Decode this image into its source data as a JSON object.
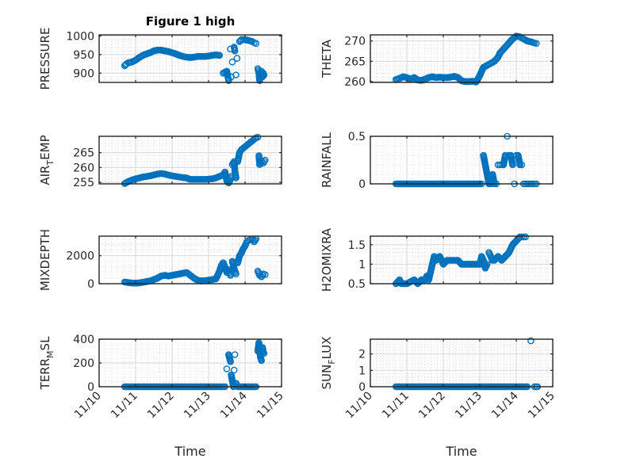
{
  "figure": {
    "title": "Figure 1 high",
    "marker_color": "#0072BD",
    "axis_color": "#262626"
  },
  "chart_data": [
    {
      "type": "scatter",
      "position": "row1-left",
      "title": "Figure 1 high",
      "ylabel": "PRESSURE",
      "xlabel": "",
      "xlim": [
        0,
        5
      ],
      "ylim": [
        875,
        1003
      ],
      "yticks": [
        900,
        950,
        1000
      ],
      "yticklabels": [
        "900",
        "950",
        "1000"
      ],
      "grid": true,
      "minor_grid": true,
      "x": [
        0.7,
        0.75,
        0.8,
        0.9,
        1.0,
        1.1,
        1.2,
        1.3,
        1.4,
        1.5,
        1.6,
        1.7,
        1.8,
        1.9,
        2.0,
        2.1,
        2.2,
        2.3,
        2.4,
        2.5,
        2.6,
        2.7,
        2.8,
        2.9,
        3.0,
        3.1,
        3.2,
        3.3,
        3.4,
        3.5,
        3.55,
        3.6,
        3.62,
        3.65,
        3.7,
        3.72,
        3.75,
        3.78,
        3.85,
        3.9,
        3.95,
        4.0,
        4.1,
        4.2,
        4.25,
        4.3,
        4.35,
        4.38,
        4.4,
        4.42,
        4.45,
        4.48,
        4.5,
        4.52
      ],
      "y": [
        920,
        925,
        928,
        930,
        935,
        942,
        948,
        952,
        955,
        960,
        962,
        962,
        960,
        958,
        955,
        952,
        948,
        945,
        943,
        942,
        943,
        945,
        945,
        945,
        946,
        948,
        949,
        948,
        900,
        905,
        880,
        965,
        890,
        930,
        970,
        960,
        895,
        940,
        985,
        990,
        990,
        990,
        988,
        985,
        982,
        980,
        912,
        900,
        880,
        895,
        905,
        890,
        900,
        895
      ]
    },
    {
      "type": "scatter",
      "position": "row1-right",
      "ylabel": "THETA",
      "xlabel": "",
      "xlim": [
        0,
        5
      ],
      "ylim": [
        259.8,
        271.5
      ],
      "yticks": [
        260,
        265,
        270
      ],
      "yticklabels": [
        "260",
        "265",
        "270"
      ],
      "grid": true,
      "minor_grid": true,
      "x": [
        0.7,
        0.8,
        0.9,
        1.0,
        1.1,
        1.2,
        1.3,
        1.4,
        1.5,
        1.6,
        1.7,
        1.8,
        1.9,
        2.0,
        2.1,
        2.2,
        2.3,
        2.4,
        2.5,
        2.6,
        2.7,
        2.8,
        2.9,
        3.0,
        3.1,
        3.2,
        3.3,
        3.4,
        3.45,
        3.5,
        3.55,
        3.6,
        3.7,
        3.8,
        3.9,
        4.0,
        4.1,
        4.2,
        4.3,
        4.4,
        4.5,
        4.55
      ],
      "y": [
        260.5,
        260.8,
        261.2,
        261.0,
        260.6,
        261.0,
        260.4,
        260.3,
        260.6,
        261.0,
        261.2,
        261.0,
        261.1,
        261.0,
        261.0,
        261.1,
        261.3,
        261.0,
        260.2,
        260.0,
        260.0,
        260.1,
        259.9,
        261.5,
        263.5,
        264.0,
        264.5,
        265.0,
        265.5,
        266.0,
        267.0,
        267.5,
        268.5,
        269.5,
        270.5,
        271.2,
        271.0,
        270.5,
        270.0,
        269.8,
        269.5,
        269.4
      ]
    },
    {
      "type": "scatter",
      "position": "row2-left",
      "ylabel": "AIR_TEMP",
      "xlabel": "",
      "xlim": [
        0,
        5
      ],
      "ylim": [
        254.5,
        270.5
      ],
      "yticks": [
        255,
        260,
        265
      ],
      "yticklabels": [
        "255",
        "260",
        "265"
      ],
      "grid": true,
      "minor_grid": true,
      "x": [
        0.7,
        0.8,
        0.9,
        1.0,
        1.1,
        1.2,
        1.3,
        1.4,
        1.5,
        1.6,
        1.7,
        1.8,
        1.9,
        2.0,
        2.1,
        2.2,
        2.3,
        2.4,
        2.5,
        2.6,
        2.7,
        2.8,
        2.9,
        3.0,
        3.1,
        3.2,
        3.4,
        3.45,
        3.5,
        3.55,
        3.6,
        3.62,
        3.65,
        3.7,
        3.72,
        3.75,
        3.8,
        3.85,
        3.9,
        4.0,
        4.1,
        4.2,
        4.3,
        4.35,
        4.38,
        4.4,
        4.45,
        4.5,
        4.55
      ],
      "y": [
        254.6,
        255.3,
        255.8,
        256.2,
        256.5,
        256.8,
        257.0,
        257.2,
        257.5,
        257.8,
        258.0,
        257.8,
        257.5,
        257.2,
        257.0,
        256.8,
        256.6,
        256.5,
        256.0,
        256.0,
        256.0,
        256.0,
        256.0,
        256.1,
        256.2,
        256.5,
        257.5,
        258.5,
        255.5,
        254.8,
        256.0,
        257.0,
        261.0,
        262.0,
        259.0,
        256.5,
        262.0,
        265.0,
        266.0,
        267.0,
        268.0,
        269.0,
        270.0,
        270.2,
        264.0,
        261.0,
        262.0,
        261.5,
        262.5
      ]
    },
    {
      "type": "scatter",
      "position": "row2-right",
      "ylabel": "RAINFALL",
      "xlabel": "",
      "xlim": [
        0,
        5
      ],
      "ylim": [
        0,
        0.5
      ],
      "yticks": [
        0,
        0.5
      ],
      "yticklabels": [
        "0",
        "0.5"
      ],
      "grid": true,
      "minor_grid": true,
      "x": [
        0.7,
        0.8,
        0.9,
        1.0,
        1.1,
        1.2,
        1.3,
        1.4,
        1.5,
        1.6,
        1.7,
        1.8,
        1.9,
        2.0,
        2.1,
        2.2,
        2.3,
        2.4,
        2.5,
        2.6,
        2.7,
        2.8,
        2.9,
        3.0,
        3.05,
        3.1,
        3.15,
        3.2,
        3.25,
        3.3,
        3.35,
        3.4,
        3.45,
        3.5,
        3.55,
        3.6,
        3.65,
        3.7,
        3.75,
        3.8,
        3.85,
        3.9,
        3.95,
        4.0,
        4.05,
        4.1,
        4.15,
        4.2,
        4.25,
        4.3,
        4.35,
        4.4,
        4.45,
        4.5,
        4.55
      ],
      "y": [
        0,
        0,
        0,
        0,
        0,
        0,
        0,
        0,
        0,
        0,
        0,
        0,
        0,
        0,
        0,
        0,
        0,
        0,
        0,
        0,
        0,
        0,
        0,
        0,
        0,
        0.3,
        0.2,
        0.1,
        0,
        0,
        0.1,
        0,
        0,
        0.2,
        0.2,
        0.2,
        0.2,
        0.3,
        0.5,
        0.3,
        0.3,
        0.2,
        0,
        0.3,
        0.3,
        0.2,
        0.2,
        0,
        0,
        0,
        0,
        0,
        0,
        0,
        0
      ]
    },
    {
      "type": "scatter",
      "position": "row3-left",
      "ylabel": "MIXDEPTH",
      "xlabel": "",
      "xlim": [
        0,
        5
      ],
      "ylim": [
        0,
        3400
      ],
      "yticks": [
        0,
        2000
      ],
      "yticklabels": [
        "0",
        "2000"
      ],
      "grid": true,
      "minor_grid": true,
      "x": [
        0.7,
        0.8,
        0.9,
        1.0,
        1.1,
        1.2,
        1.3,
        1.4,
        1.5,
        1.6,
        1.7,
        1.8,
        1.9,
        2.0,
        2.1,
        2.2,
        2.3,
        2.4,
        2.5,
        2.6,
        2.7,
        2.8,
        2.9,
        3.0,
        3.1,
        3.2,
        3.25,
        3.3,
        3.35,
        3.4,
        3.45,
        3.5,
        3.55,
        3.6,
        3.65,
        3.7,
        3.75,
        3.8,
        3.85,
        3.9,
        3.95,
        4.0,
        4.05,
        4.1,
        4.15,
        4.2,
        4.25,
        4.3,
        4.35,
        4.4,
        4.45,
        4.5,
        4.55
      ],
      "y": [
        120,
        80,
        50,
        40,
        60,
        100,
        150,
        200,
        300,
        400,
        550,
        600,
        550,
        600,
        650,
        700,
        750,
        800,
        600,
        400,
        250,
        200,
        220,
        250,
        300,
        350,
        600,
        900,
        1300,
        1500,
        1200,
        800,
        1000,
        600,
        1600,
        1100,
        700,
        1500,
        2000,
        2200,
        2500,
        2700,
        3000,
        3100,
        3150,
        3200,
        3000,
        3200,
        900,
        600,
        500,
        700,
        650
      ]
    },
    {
      "type": "scatter",
      "position": "row3-right",
      "ylabel": "H2OMIXRA",
      "xlabel": "",
      "xlim": [
        0,
        5
      ],
      "ylim": [
        0.5,
        1.72
      ],
      "yticks": [
        0.5,
        1,
        1.5
      ],
      "yticklabels": [
        "0.5",
        "1",
        "1.5"
      ],
      "grid": true,
      "minor_grid": true,
      "x": [
        0.7,
        0.8,
        0.85,
        0.9,
        1.0,
        1.1,
        1.2,
        1.3,
        1.4,
        1.5,
        1.55,
        1.6,
        1.65,
        1.7,
        1.75,
        1.8,
        1.9,
        2.0,
        2.1,
        2.2,
        2.3,
        2.4,
        2.5,
        2.6,
        2.7,
        2.8,
        2.9,
        3.0,
        3.05,
        3.1,
        3.15,
        3.2,
        3.25,
        3.3,
        3.35,
        3.4,
        3.5,
        3.6,
        3.7,
        3.8,
        3.85,
        3.9,
        3.95,
        4.0,
        4.05,
        4.1,
        4.15,
        4.2,
        4.25
      ],
      "y": [
        0.5,
        0.6,
        0.5,
        0.5,
        0.5,
        0.55,
        0.6,
        0.5,
        0.6,
        0.6,
        0.7,
        0.6,
        0.8,
        1.0,
        1.2,
        1.1,
        1.2,
        1.0,
        1.1,
        1.1,
        1.1,
        1.1,
        1.0,
        1.0,
        1.0,
        1.0,
        1.0,
        1.0,
        1.2,
        1.1,
        0.9,
        1.0,
        1.3,
        1.2,
        1.1,
        1.1,
        1.2,
        1.1,
        1.2,
        1.3,
        1.4,
        1.5,
        1.55,
        1.6,
        1.65,
        1.7,
        1.7,
        1.7,
        1.7
      ]
    },
    {
      "type": "scatter",
      "position": "row4-left",
      "ylabel": "TERR_MSL",
      "xlabel": "Time",
      "xlim": [
        0,
        5
      ],
      "ylim": [
        0,
        400
      ],
      "yticks": [
        0,
        200,
        400
      ],
      "yticklabels": [
        "0",
        "200",
        "400"
      ],
      "xticks": [
        0,
        1,
        2,
        3,
        4,
        5
      ],
      "xticklabels": [
        "11/10",
        "11/11",
        "11/12",
        "11/13",
        "11/14",
        "11/15"
      ],
      "grid": true,
      "minor_grid": true,
      "x": [
        0.7,
        0.9,
        1.1,
        1.3,
        1.5,
        1.7,
        1.9,
        2.1,
        2.3,
        2.5,
        2.7,
        2.9,
        3.1,
        3.3,
        3.45,
        3.5,
        3.55,
        3.6,
        3.62,
        3.65,
        3.68,
        3.7,
        3.72,
        3.75,
        3.8,
        3.9,
        4.0,
        4.1,
        4.2,
        4.3,
        4.35,
        4.38,
        4.4,
        4.42,
        4.45,
        4.48,
        4.5,
        4.52
      ],
      "y": [
        0,
        0,
        0,
        0,
        0,
        0,
        0,
        0,
        0,
        0,
        0,
        0,
        0,
        0,
        0,
        150,
        270,
        210,
        100,
        50,
        0,
        140,
        270,
        30,
        0,
        0,
        0,
        0,
        0,
        0,
        300,
        370,
        310,
        250,
        220,
        330,
        290,
        280
      ]
    },
    {
      "type": "scatter",
      "position": "row4-right",
      "ylabel": "SUN_FLUX",
      "xlabel": "Time",
      "xlim": [
        0,
        5
      ],
      "ylim": [
        0,
        2.9
      ],
      "yticks": [
        0,
        1,
        2
      ],
      "yticklabels": [
        "0",
        "1",
        "2"
      ],
      "xticks": [
        0,
        1,
        2,
        3,
        4,
        5
      ],
      "xticklabels": [
        "11/10",
        "11/11",
        "11/12",
        "11/13",
        "11/14",
        "11/15"
      ],
      "grid": true,
      "minor_grid": true,
      "x": [
        0.7,
        0.9,
        1.1,
        1.3,
        1.5,
        1.7,
        1.9,
        2.1,
        2.3,
        2.5,
        2.7,
        2.9,
        3.1,
        3.3,
        3.5,
        3.7,
        3.9,
        4.1,
        4.3,
        4.4,
        4.5,
        4.55,
        4.58
      ],
      "y": [
        0,
        0,
        0,
        0,
        0,
        0,
        0,
        0,
        0,
        0,
        0,
        0,
        0,
        0,
        0,
        0,
        0,
        0,
        0,
        2.8,
        0,
        0,
        0
      ]
    }
  ]
}
